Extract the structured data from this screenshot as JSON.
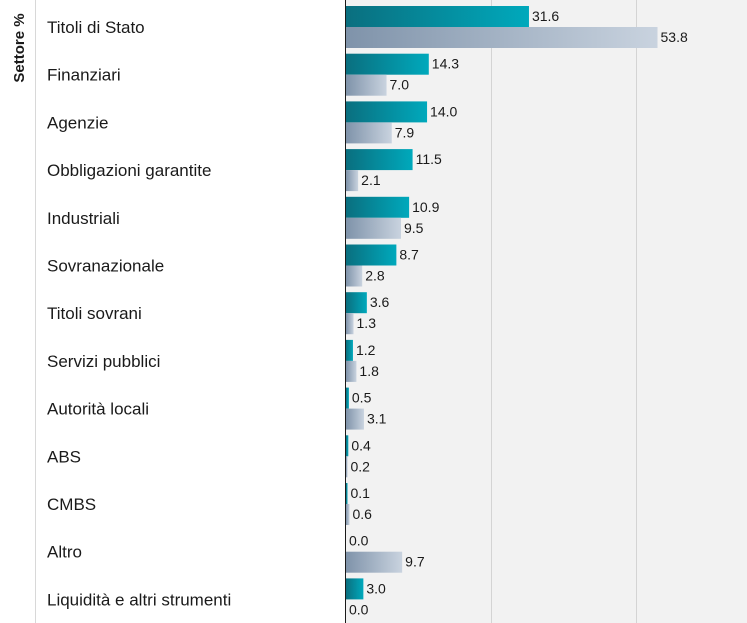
{
  "chart_data": {
    "type": "bar",
    "orientation": "horizontal",
    "title": "",
    "ylabel": "Settore %",
    "xlabel": "",
    "categories": [
      "Titoli di Stato",
      "Finanziari",
      "Agenzie",
      "Obbligazioni garantite",
      "Industriali",
      "Sovranazionale",
      "Titoli sovrani",
      "Servizi pubblici",
      "Autorità locali",
      "ABS",
      "CMBS",
      "Altro",
      "Liquidità e altri strumenti"
    ],
    "series": [
      {
        "values": [
          31.6,
          14.3,
          14.0,
          11.5,
          10.9,
          8.7,
          3.6,
          1.2,
          0.5,
          0.4,
          0.1,
          0.0,
          3.0
        ],
        "labels": [
          "31.6",
          "14.3",
          "14.0",
          "11.5",
          "10.9",
          "8.7",
          "3.6",
          "1.2",
          "0.5",
          "0.4",
          "0.1",
          "0.0",
          "3.0"
        ],
        "color": "#00a3b5"
      },
      {
        "values": [
          53.8,
          7.0,
          7.9,
          2.1,
          9.5,
          2.8,
          1.3,
          1.8,
          3.1,
          0.2,
          0.6,
          9.7,
          0.0
        ],
        "labels": [
          "53.8",
          "7.0",
          "7.9",
          "2.1",
          "9.5",
          "2.8",
          "1.3",
          "1.8",
          "3.1",
          "0.2",
          "0.6",
          "9.7",
          "0.0"
        ],
        "color": "#a6b6c9"
      }
    ],
    "xlim": [
      0,
      60
    ],
    "grid": true,
    "legend": "none"
  }
}
